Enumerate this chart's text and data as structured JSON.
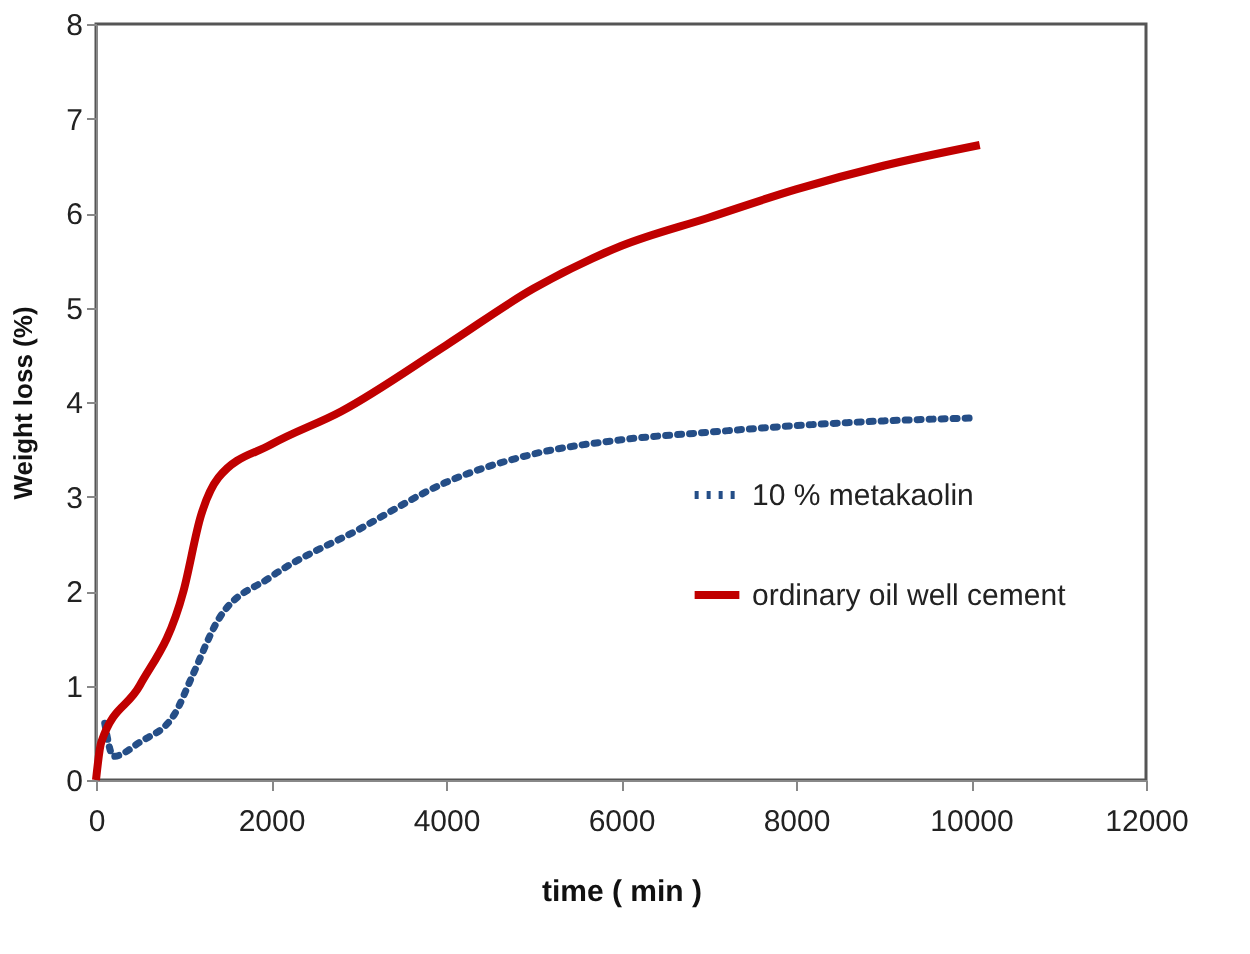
{
  "chart_data": {
    "type": "line",
    "xlabel": "time ( min )",
    "ylabel": "Weight loss (%)",
    "xlim": [
      0,
      12000
    ],
    "xticks": [
      0,
      2000,
      4000,
      6000,
      8000,
      10000,
      12000
    ],
    "ylim": [
      0,
      8
    ],
    "yticks": [
      0,
      1,
      2,
      3,
      4,
      5,
      6,
      7,
      8
    ],
    "grid": false,
    "legend": "right",
    "marker": "none",
    "series": [
      {
        "name": "10 % metakaolin",
        "color": "#254e87",
        "line_style": "dotted",
        "x": [
          100,
          200,
          500,
          900,
          1100,
          1400,
          2000,
          3000,
          4000,
          5000,
          6000,
          7000,
          8000,
          9000,
          10000
        ],
        "values": [
          0.6,
          0.25,
          0.4,
          0.7,
          1.1,
          1.7,
          2.15,
          2.65,
          3.15,
          3.45,
          3.6,
          3.68,
          3.75,
          3.8,
          3.83
        ]
      },
      {
        "name": "ordinary oil well cement",
        "color": "#c00000",
        "line_style": "solid",
        "x": [
          0,
          60,
          500,
          1000,
          1200,
          1400,
          2000,
          2800,
          4000,
          5000,
          6000,
          7000,
          8000,
          9000,
          10100
        ],
        "values": [
          0,
          0.4,
          1.0,
          2.0,
          2.8,
          3.2,
          3.55,
          3.9,
          4.6,
          5.2,
          5.65,
          5.95,
          6.25,
          6.5,
          6.72
        ]
      }
    ]
  }
}
